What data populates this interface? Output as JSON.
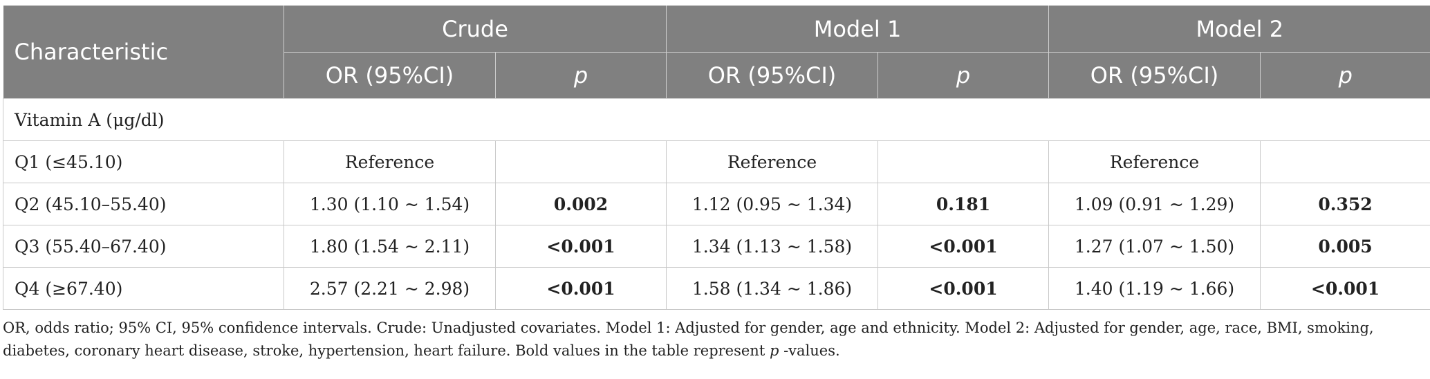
{
  "table": {
    "header_top": {
      "characteristic": "Characteristic",
      "groups": [
        "Crude",
        "Model 1",
        "Model 2"
      ]
    },
    "header_sub": {
      "or": "OR (95%CI)",
      "p": "p"
    },
    "section_label": "Vitamin A (μg/dl)",
    "rows": [
      {
        "label": "Q1 (≤45.10)",
        "crude_or": "Reference",
        "crude_p": "",
        "m1_or": "Reference",
        "m1_p": "",
        "m2_or": "Reference",
        "m2_p": ""
      },
      {
        "label": "Q2 (45.10–55.40)",
        "crude_or": "1.30 (1.10 ~ 1.54)",
        "crude_p": "0.002",
        "m1_or": "1.12 (0.95 ~ 1.34)",
        "m1_p": "0.181",
        "m2_or": "1.09 (0.91 ~ 1.29)",
        "m2_p": "0.352"
      },
      {
        "label": "Q3 (55.40–67.40)",
        "crude_or": "1.80 (1.54 ~ 2.11)",
        "crude_p": "<0.001",
        "m1_or": "1.34 (1.13 ~ 1.58)",
        "m1_p": "<0.001",
        "m2_or": "1.27 (1.07 ~ 1.50)",
        "m2_p": "0.005"
      },
      {
        "label": "Q4 (≥67.40)",
        "crude_or": "2.57 (2.21 ~ 2.98)",
        "crude_p": "<0.001",
        "m1_or": "1.58 (1.34 ~ 1.86)",
        "m1_p": "<0.001",
        "m2_or": "1.40 (1.19 ~ 1.66)",
        "m2_p": "<0.001"
      }
    ]
  },
  "footnote": {
    "line1": "OR, odds ratio; 95% CI, 95% confidence intervals. Crude: Unadjusted covariates. Model 1: Adjusted for gender, age and ethnicity. Model 2: Adjusted for gender, age, race, BMI, smoking,",
    "line2_pre": "diabetes, coronary heart disease, stroke, hypertension, heart failure. Bold values in the table represent ",
    "line2_p": "p",
    "line2_post": " -values."
  }
}
